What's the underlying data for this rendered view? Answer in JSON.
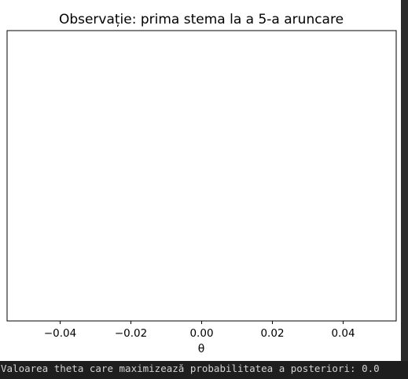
{
  "chart_data": {
    "type": "line",
    "title": "Observație: prima stema la a 5-a aruncare",
    "xlabel": "θ",
    "ylabel": "",
    "x_ticks": [
      -0.04,
      -0.02,
      0.0,
      0.02,
      0.04
    ],
    "x_tick_labels": [
      "−0.04",
      "−0.02",
      "0.00",
      "0.02",
      "0.04"
    ],
    "xlim": [
      -0.055,
      0.055
    ],
    "y_ticks": [],
    "series": [],
    "grid": false,
    "legend": "none"
  },
  "output": {
    "text": "Valoarea theta care maximizează probabilitatea a posteriori: 0.0"
  }
}
